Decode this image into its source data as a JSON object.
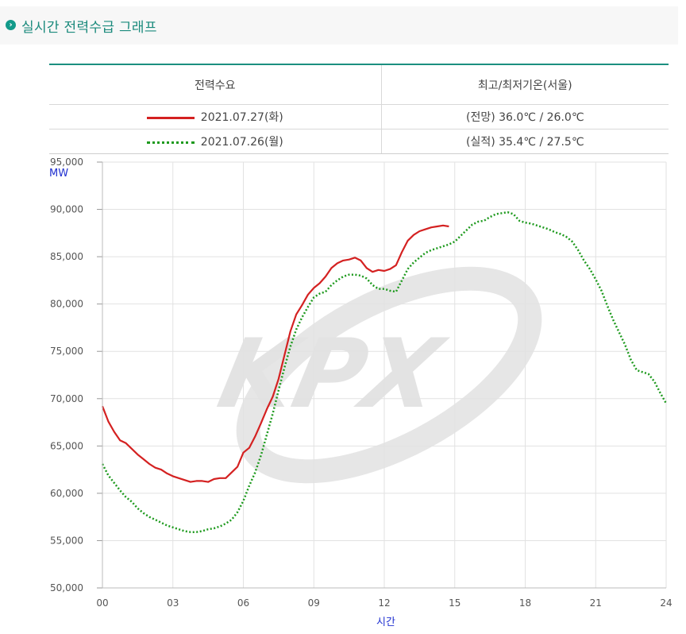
{
  "header": {
    "title": "실시간 전력수급 그래프",
    "icon": "chevron-right-icon"
  },
  "legend": {
    "col1": "전력수요",
    "col2": "최고/최저기온(서울)",
    "rows": [
      {
        "label": "2021.07.27(화)",
        "temp": "(전망)  36.0℃  /  26.0℃",
        "color": "#d42121",
        "style": "solid"
      },
      {
        "label": "2021.07.26(월)",
        "temp": "(실적)  35.4℃  /  27.5℃",
        "color": "#1e9a1e",
        "style": "dotted"
      }
    ]
  },
  "chart_data": {
    "type": "line",
    "xlabel": "시간",
    "ylabel": "MW",
    "xlim": [
      0,
      24
    ],
    "ylim": [
      50000,
      95000
    ],
    "x_ticks": [
      "00",
      "03",
      "06",
      "09",
      "12",
      "15",
      "18",
      "21",
      "24"
    ],
    "y_ticks": [
      "50,000",
      "55,000",
      "60,000",
      "65,000",
      "70,000",
      "75,000",
      "80,000",
      "85,000",
      "90,000",
      "95,000"
    ],
    "grid": true,
    "watermark": "KPX",
    "series": [
      {
        "name": "2021.07.27(화)",
        "color": "#d42121",
        "style": "solid",
        "x": [
          0,
          0.25,
          0.5,
          0.75,
          1,
          1.25,
          1.5,
          1.75,
          2,
          2.25,
          2.5,
          2.75,
          3,
          3.25,
          3.5,
          3.75,
          4,
          4.25,
          4.5,
          4.75,
          5,
          5.25,
          5.5,
          5.75,
          6,
          6.25,
          6.5,
          6.75,
          7,
          7.25,
          7.5,
          7.75,
          8,
          8.25,
          8.5,
          8.75,
          9,
          9.25,
          9.5,
          9.75,
          10,
          10.25,
          10.5,
          10.75,
          11,
          11.25,
          11.5,
          11.75,
          12,
          12.25,
          12.5,
          12.75,
          13,
          13.25,
          13.5,
          13.75,
          14,
          14.25,
          14.5,
          14.75
        ],
        "values": [
          69200,
          67600,
          66500,
          65600,
          65300,
          64700,
          64100,
          63600,
          63100,
          62700,
          62500,
          62100,
          61800,
          61600,
          61400,
          61200,
          61300,
          61300,
          61200,
          61500,
          61600,
          61600,
          62200,
          62800,
          64300,
          64800,
          66000,
          67400,
          68900,
          70200,
          72100,
          74600,
          77100,
          78900,
          79900,
          81000,
          81700,
          82200,
          82900,
          83800,
          84300,
          84600,
          84700,
          84900,
          84600,
          83800,
          83400,
          83600,
          83500,
          83700,
          84100,
          85500,
          86700,
          87300,
          87700,
          87900,
          88100,
          88200,
          88300,
          88200
        ]
      },
      {
        "name": "2021.07.26(월)",
        "color": "#1e9a1e",
        "style": "dotted",
        "x": [
          0,
          0.25,
          0.5,
          0.75,
          1,
          1.25,
          1.5,
          1.75,
          2,
          2.25,
          2.5,
          2.75,
          3,
          3.25,
          3.5,
          3.75,
          4,
          4.25,
          4.5,
          4.75,
          5,
          5.25,
          5.5,
          5.75,
          6,
          6.25,
          6.5,
          6.75,
          7,
          7.25,
          7.5,
          7.75,
          8,
          8.25,
          8.5,
          8.75,
          9,
          9.25,
          9.5,
          9.75,
          10,
          10.25,
          10.5,
          10.75,
          11,
          11.25,
          11.5,
          11.75,
          12,
          12.25,
          12.5,
          12.75,
          13,
          13.25,
          13.5,
          13.75,
          14,
          14.25,
          14.5,
          14.75,
          15,
          15.25,
          15.5,
          15.75,
          16,
          16.25,
          16.5,
          16.75,
          17,
          17.25,
          17.5,
          17.75,
          18,
          18.25,
          18.5,
          18.75,
          19,
          19.25,
          19.5,
          19.75,
          20,
          20.25,
          20.5,
          20.75,
          21,
          21.25,
          21.5,
          21.75,
          22,
          22.25,
          22.5,
          22.75,
          23,
          23.25,
          23.5,
          23.75,
          24
        ],
        "values": [
          63100,
          61900,
          61100,
          60300,
          59600,
          59100,
          58400,
          57900,
          57500,
          57200,
          56900,
          56600,
          56400,
          56200,
          56000,
          55900,
          55900,
          56000,
          56200,
          56300,
          56500,
          56800,
          57200,
          58000,
          59200,
          60800,
          62200,
          64000,
          66200,
          68400,
          70900,
          73300,
          75500,
          77300,
          78600,
          79700,
          80700,
          81100,
          81300,
          82000,
          82500,
          82900,
          83100,
          83100,
          83000,
          82700,
          82000,
          81600,
          81600,
          81400,
          81300,
          82500,
          83700,
          84400,
          84900,
          85400,
          85700,
          85900,
          86100,
          86300,
          86600,
          87200,
          87800,
          88400,
          88700,
          88800,
          89200,
          89500,
          89600,
          89700,
          89500,
          88800,
          88600,
          88500,
          88300,
          88100,
          87900,
          87600,
          87400,
          87100,
          86600,
          85700,
          84600,
          83700,
          82600,
          81400,
          79800,
          78300,
          77000,
          75700,
          74100,
          73000,
          72800,
          72600,
          71800,
          70600,
          69500
        ]
      }
    ]
  }
}
